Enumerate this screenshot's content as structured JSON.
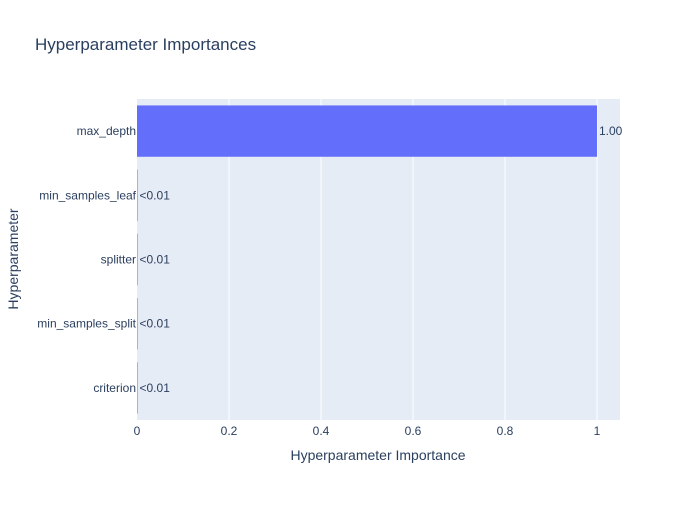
{
  "chart_data": {
    "type": "bar",
    "orientation": "horizontal",
    "title": "Hyperparameter Importances",
    "xlabel": "Hyperparameter Importance",
    "ylabel": "Hyperparameter",
    "xlim": [
      0,
      1.05
    ],
    "x_ticks": [
      0,
      0.2,
      0.4,
      0.6,
      0.8,
      1
    ],
    "x_tick_labels": [
      "0",
      "0.2",
      "0.4",
      "0.6",
      "0.8",
      "1"
    ],
    "grid": true,
    "legend": "none",
    "categories": [
      "max_depth",
      "min_samples_leaf",
      "splitter",
      "min_samples_split",
      "criterion"
    ],
    "values": [
      1.0,
      0.001,
      0.001,
      0.001,
      0.001
    ],
    "data_labels": [
      "1.00",
      "<0.01",
      "<0.01",
      "<0.01",
      "<0.01"
    ]
  },
  "colors": {
    "bar": "#636efa",
    "plot_background": "#e5ecf6",
    "grid": "#ffffff",
    "text": "#2a3f5f"
  }
}
